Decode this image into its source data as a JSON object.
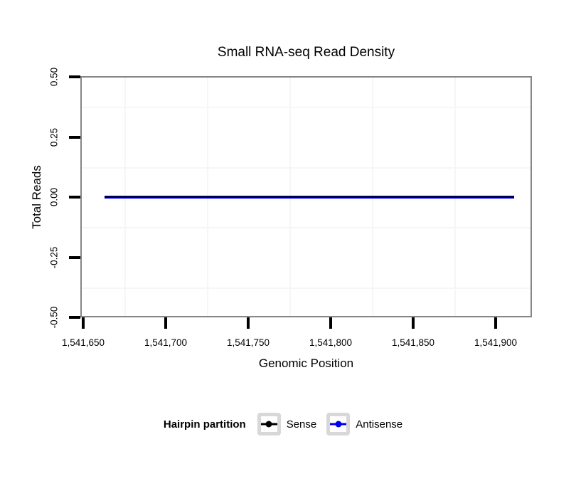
{
  "colors": {
    "background": "#FFFFFF",
    "panel_border": "#868686",
    "tick": "#000000",
    "minor_gridline": "#F6F6F6",
    "legend_key_border": "#D8D8D8",
    "sense": "#000000",
    "antisense": "#0000EE"
  },
  "chart_data": {
    "type": "line",
    "title": "Small RNA-seq Read Density",
    "xlabel": "Genomic Position",
    "ylabel": "Total Reads",
    "xlim": [
      1541648,
      1541922
    ],
    "ylim": [
      -0.5,
      0.5
    ],
    "xticks": [
      {
        "value": 1541650,
        "label": "1,541,650"
      },
      {
        "value": 1541700,
        "label": "1,541,700"
      },
      {
        "value": 1541750,
        "label": "1,541,750"
      },
      {
        "value": 1541800,
        "label": "1,541,800"
      },
      {
        "value": 1541850,
        "label": "1,541,850"
      },
      {
        "value": 1541900,
        "label": "1,541,900"
      }
    ],
    "yticks": [
      {
        "value": 0.5,
        "label": "0.50"
      },
      {
        "value": 0.25,
        "label": "0.25"
      },
      {
        "value": 0.0,
        "label": "0.00"
      },
      {
        "value": -0.25,
        "label": "-0.25"
      },
      {
        "value": -0.5,
        "label": "-0.50"
      }
    ],
    "grid": {
      "major": "none (white)",
      "minor": "very light grey at midpoints between ticks"
    },
    "series": [
      {
        "name": "Antisense",
        "color": "#0000EE",
        "x_start": 1541663,
        "x_end": 1541911,
        "constant_y": 0
      },
      {
        "name": "Sense",
        "color": "#000000",
        "x_start": 1541663,
        "x_end": 1541911,
        "constant_y": 0
      }
    ],
    "legend": {
      "title": "Hairpin partition",
      "position": "bottom",
      "entries": [
        {
          "label": "Sense",
          "color": "#000000"
        },
        {
          "label": "Antisense",
          "color": "#0000EE"
        }
      ]
    }
  }
}
